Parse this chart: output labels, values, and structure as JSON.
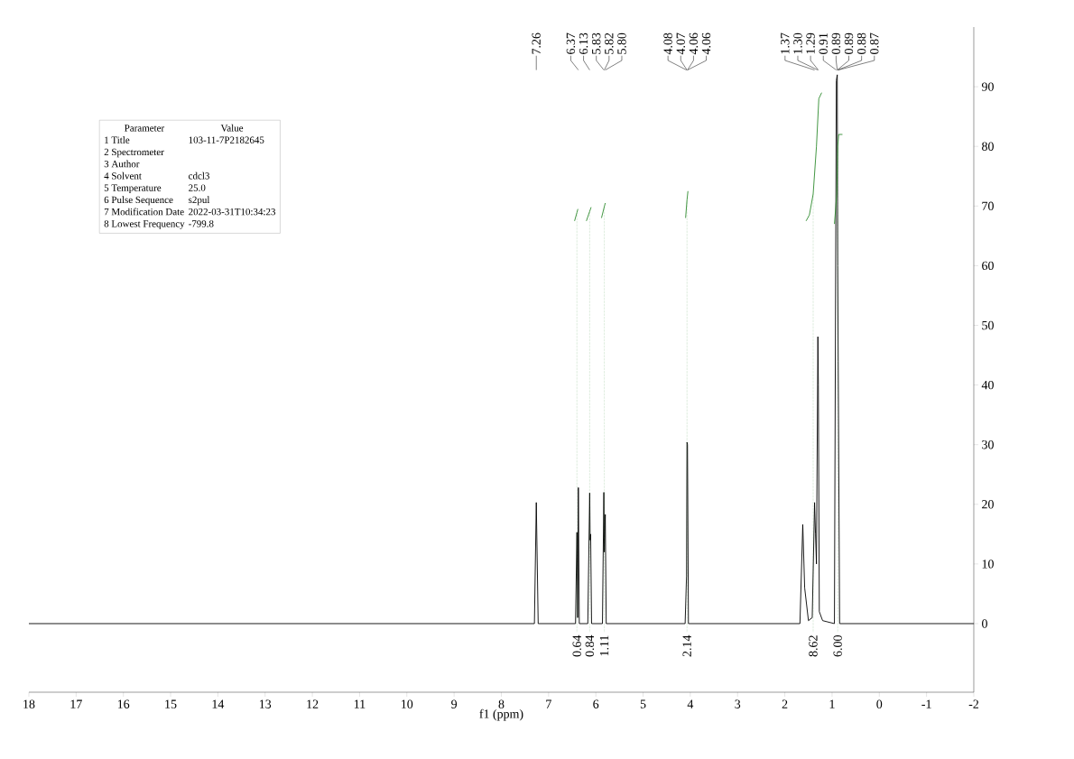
{
  "chart_data": [
    {
      "type": "line",
      "xlabel": "f1 (ppm)",
      "marker": "none",
      "xlim": [
        18,
        -2
      ],
      "xticks": [
        18,
        17,
        16,
        15,
        14,
        13,
        12,
        11,
        10,
        9,
        8,
        7,
        6,
        5,
        4,
        3,
        2,
        1,
        0,
        -1,
        -2
      ],
      "ylim": [
        -11.5,
        100
      ],
      "yticks": [
        0,
        10,
        20,
        30,
        40,
        50,
        60,
        70,
        80,
        90
      ],
      "series": [
        {
          "color": "#000000",
          "x": [
            18,
            7.3,
            7.26,
            7.22,
            6.43,
            6.4,
            6.385,
            6.37,
            6.35,
            6.17,
            6.13,
            6.12,
            6.11,
            6.09,
            5.86,
            5.83,
            5.82,
            5.8,
            5.78,
            4.11,
            4.08,
            4.07,
            4.06,
            4.04,
            1.68,
            1.62,
            1.58,
            1.5,
            1.42,
            1.37,
            1.35,
            1.33,
            1.3,
            1.29,
            1.27,
            1.2,
            0.95,
            0.91,
            0.89,
            0.88,
            0.87,
            0.84,
            -2
          ],
          "values": [
            0,
            0,
            20.3,
            0,
            0,
            15.3,
            1,
            22.8,
            0,
            0,
            21.9,
            14,
            15,
            0,
            0,
            22,
            12,
            18.3,
            0,
            0,
            8,
            30.4,
            30,
            0,
            0,
            16.6,
            6,
            0.5,
            1,
            20.3,
            15,
            10,
            48.1,
            40,
            2,
            0.5,
            0,
            91,
            92,
            60,
            44,
            0,
            0
          ]
        },
        {
          "color": "#2e8b2e",
          "x": [
            6.45,
            6.4,
            6.38
          ],
          "values": [
            67.5,
            68.9,
            69.5
          ]
        },
        {
          "color": "#2e8b2e",
          "x": [
            6.2,
            6.13,
            6.1
          ],
          "values": [
            67.5,
            69.1,
            69.8
          ]
        },
        {
          "color": "#2e8b2e",
          "x": [
            5.88,
            5.82,
            5.8
          ],
          "values": [
            68,
            69.9,
            70.5
          ]
        },
        {
          "color": "#2e8b2e",
          "x": [
            4.1,
            4.08,
            4.07,
            4.05
          ],
          "values": [
            68,
            70,
            71,
            72.5
          ]
        },
        {
          "color": "#2e8b2e",
          "x": [
            1.55,
            1.48,
            1.4,
            1.33,
            1.28,
            1.22
          ],
          "values": [
            67.5,
            68.5,
            72,
            80,
            88,
            89
          ]
        },
        {
          "color": "#2e8b2e",
          "x": [
            0.95,
            0.9,
            0.88,
            0.86,
            0.78
          ],
          "values": [
            67,
            72,
            80,
            82,
            82
          ]
        }
      ],
      "annotations": [
        {
          "text": "7.26",
          "x": 7.26
        },
        {
          "text": "6.37",
          "x": 6.37
        },
        {
          "text": "6.13",
          "x": 6.13
        },
        {
          "text": "5.83",
          "x": 5.83
        },
        {
          "text": "5.82",
          "x": 5.82
        },
        {
          "text": "5.80",
          "x": 5.8
        },
        {
          "text": "4.08",
          "x": 4.08
        },
        {
          "text": "4.07",
          "x": 4.07
        },
        {
          "text": "4.06",
          "x": 4.06
        },
        {
          "text": "4.06",
          "x": 4.06
        },
        {
          "text": "1.37",
          "x": 1.37
        },
        {
          "text": "1.30",
          "x": 1.3
        },
        {
          "text": "1.29",
          "x": 1.29
        },
        {
          "text": "0.91",
          "x": 0.91
        },
        {
          "text": "0.89",
          "x": 0.89
        },
        {
          "text": "0.89",
          "x": 0.89
        },
        {
          "text": "0.88",
          "x": 0.88
        },
        {
          "text": "0.87",
          "x": 0.87
        },
        {
          "text": "0.64",
          "x": 6.4,
          "y": 68.9
        },
        {
          "text": "0.84",
          "x": 6.13,
          "y": 69.1
        },
        {
          "text": "1.11",
          "x": 5.82,
          "y": 69.9
        },
        {
          "text": "2.14",
          "x": 4.07,
          "y": 71
        },
        {
          "text": "8.62",
          "x": 1.4,
          "y": 72
        },
        {
          "text": "6.00",
          "x": 0.88,
          "y": 80
        }
      ]
    },
    {
      "type": "other",
      "categories": [
        "Parameter",
        "1 Title",
        "2 Spectrometer",
        "3 Author",
        "4 Solvent",
        "5 Temperature",
        "6 Pulse Sequence",
        "7 Modification Date",
        "8 Lowest Frequency"
      ],
      "annotations": [
        "Value",
        "103-11-7P2182645",
        null,
        null,
        "cdcl3",
        "25.0",
        "s2pul",
        "2022-03-31T10:34:23",
        "-799.8"
      ]
    }
  ]
}
